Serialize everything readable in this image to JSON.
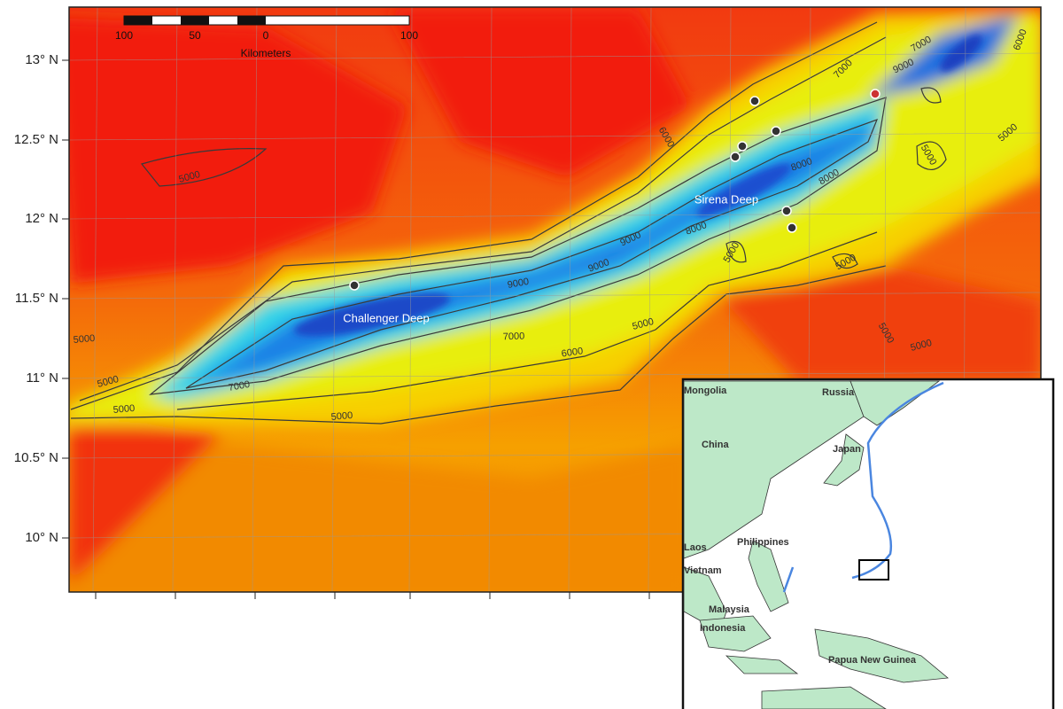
{
  "map": {
    "latitude_labels": [
      "13° N",
      "12.5° N",
      "12° N",
      "11.5° N",
      "11° N",
      "10.5° N",
      "10° N"
    ],
    "scale_bar": {
      "labels": [
        "100",
        "50",
        "0",
        "100"
      ],
      "unit": "Kilometers"
    },
    "features": [
      "Challenger Deep",
      "Sirena Deep"
    ],
    "contour_labels": [
      "7000",
      "9000",
      "7000",
      "6000",
      "5000",
      "5000",
      "6000",
      "5000",
      "8000",
      "8000",
      "8000",
      "9000",
      "5000",
      "5000",
      "9000",
      "9000",
      "7000",
      "6000",
      "5000",
      "5000",
      "5000",
      "5000",
      "5000",
      "7000",
      "5000",
      "5000"
    ],
    "inset": {
      "labels": [
        "Mongolia",
        "Russia",
        "China",
        "Japan",
        "Philippines",
        "Laos",
        "Vietnam",
        "Malaysia",
        "Indonesia",
        "Papua New Guinea"
      ]
    }
  }
}
